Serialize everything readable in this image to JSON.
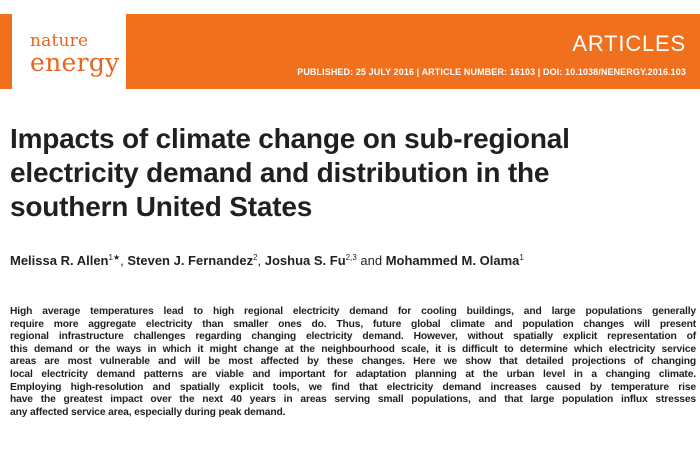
{
  "header": {
    "journal_line1": "nature",
    "journal_line2": "energy",
    "section": "ARTICLES",
    "pub_info": "PUBLISHED: 25 JULY 2016 | ARTICLE NUMBER: 16103 | DOI: 10.1038/NENERGY.2016.103",
    "banner_color": "#f0701e",
    "logo_color": "#e8641b"
  },
  "article": {
    "title_lines": [
      "Impacts of climate change on sub-regional",
      "electricity demand and distribution in the",
      "southern United States"
    ],
    "authors": [
      {
        "name": "Melissa R. Allen",
        "sup": "1★",
        "sep": ", "
      },
      {
        "name": "Steven J. Fernandez",
        "sup": "2",
        "sep": ", "
      },
      {
        "name": "Joshua S. Fu",
        "sup": "2,3",
        "sep": " and "
      },
      {
        "name": "Mohammed M. Olama",
        "sup": "1",
        "sep": ""
      }
    ],
    "abstract_lines": [
      "High average temperatures lead to high regional electricity demand for cooling buildings, and large populations generally",
      "require more aggregate electricity than smaller ones do. Thus, future global climate and population changes will present",
      "regional infrastructure challenges regarding changing electricity demand. However, without spatially explicit representation of",
      "this demand or the ways in which it might change at the neighbourhood scale, it is difficult to determine which electricity service",
      "areas are most vulnerable and will be most affected by these changes. Here we show that detailed projections of changing",
      "local electricity demand patterns are viable and important for adaptation planning at the urban level in a changing climate.",
      "Employing high-resolution and spatially explicit tools, we find that electricity demand increases caused by temperature rise",
      "have the greatest impact over the next 40 years in areas serving small populations, and that large population influx stresses",
      "any affected service area, especially during peak demand."
    ]
  }
}
